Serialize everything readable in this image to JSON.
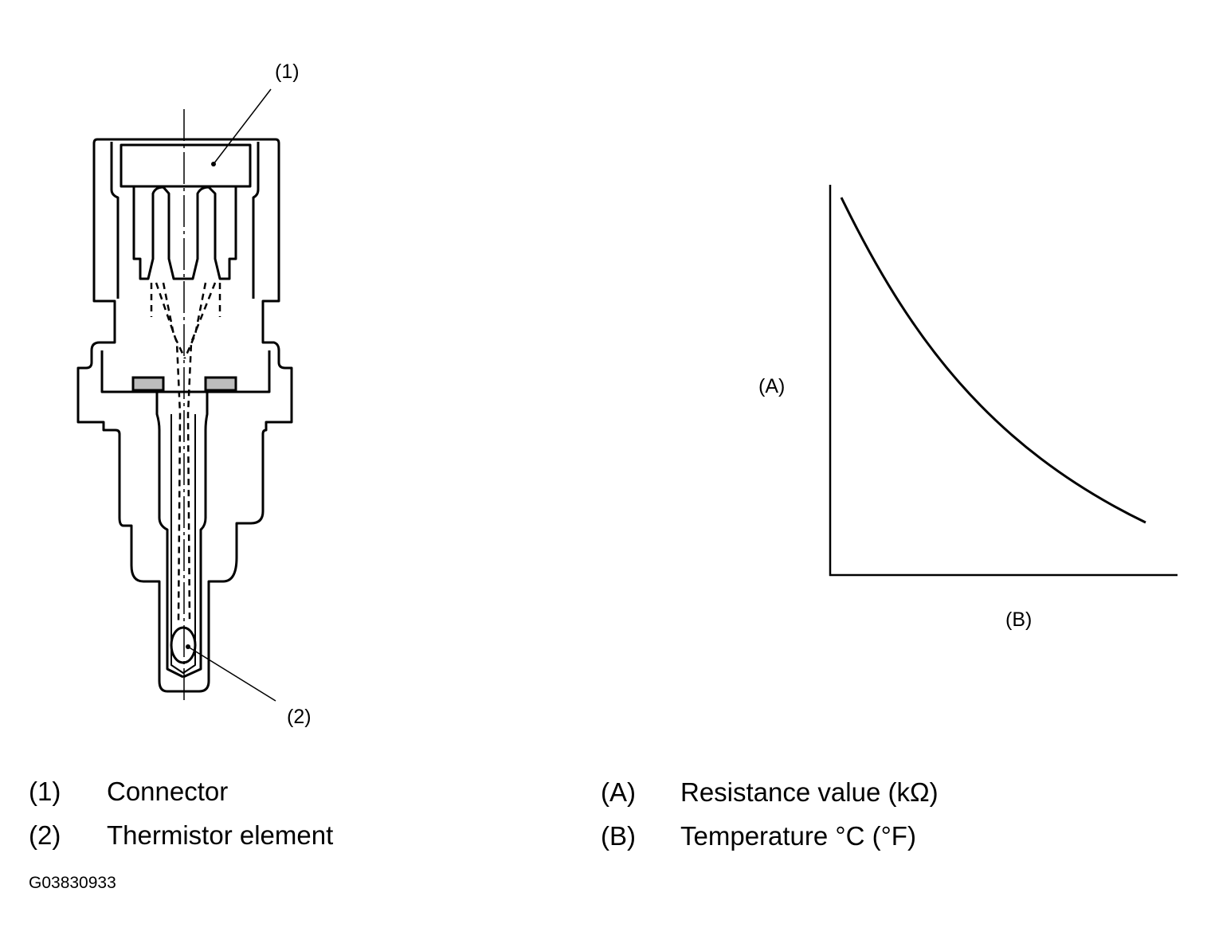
{
  "sensor": {
    "callouts": [
      {
        "id": "(1)"
      },
      {
        "id": "(2)"
      }
    ]
  },
  "graph": {
    "y_label": "(A)",
    "x_label": "(B)",
    "trend": "decreasing"
  },
  "legend": {
    "left": [
      {
        "key": "(1)",
        "text": "Connector"
      },
      {
        "key": "(2)",
        "text": "Thermistor element"
      }
    ],
    "right": [
      {
        "key": "(A)",
        "text": "Resistance value (kΩ)"
      },
      {
        "key": "(B)",
        "text": "Temperature °C (°F)"
      }
    ]
  },
  "figure_code": "G03830933",
  "colors": {
    "line": "#000000",
    "seal_fill": "#bdbdbd"
  }
}
